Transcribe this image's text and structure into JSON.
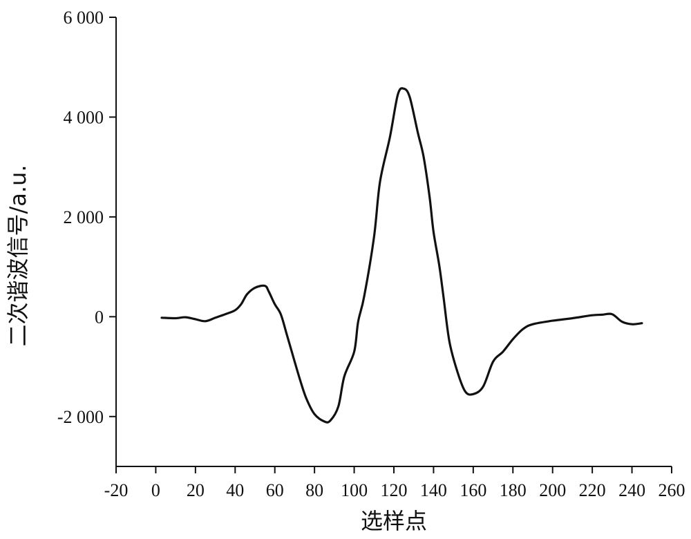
{
  "chart_data": {
    "type": "line",
    "title": "",
    "xlabel": "选样点",
    "ylabel": "二次谐波信号/a.u.",
    "xlim": [
      -20,
      260
    ],
    "ylim": [
      -3000,
      6000
    ],
    "grid": false,
    "x_ticks": [
      {
        "value": -20,
        "label": "-20"
      },
      {
        "value": 0,
        "label": "0"
      },
      {
        "value": 20,
        "label": "20"
      },
      {
        "value": 40,
        "label": "40"
      },
      {
        "value": 60,
        "label": "60"
      },
      {
        "value": 80,
        "label": "80"
      },
      {
        "value": 100,
        "label": "100"
      },
      {
        "value": 120,
        "label": "120"
      },
      {
        "value": 140,
        "label": "140"
      },
      {
        "value": 160,
        "label": "160"
      },
      {
        "value": 180,
        "label": "180"
      },
      {
        "value": 200,
        "label": "200"
      },
      {
        "value": 220,
        "label": "220"
      },
      {
        "value": 240,
        "label": "240"
      },
      {
        "value": 260,
        "label": "260"
      }
    ],
    "y_ticks": [
      {
        "value": -2000,
        "label": "-2 000"
      },
      {
        "value": 0,
        "label": "0"
      },
      {
        "value": 2000,
        "label": "2 000"
      },
      {
        "value": 4000,
        "label": "4 000"
      },
      {
        "value": 6000,
        "label": "6 000"
      }
    ],
    "series": [
      {
        "color": "#111111",
        "x": [
          3,
          10,
          15,
          20,
          25,
          30,
          35,
          40,
          43,
          46,
          50,
          55,
          57,
          60,
          63,
          66,
          70,
          73,
          76,
          80,
          85,
          88,
          92,
          95,
          100,
          102,
          105,
          110,
          113,
          118,
          122,
          125,
          128,
          132,
          135,
          138,
          140,
          143,
          145,
          148,
          152,
          156,
          160,
          165,
          170,
          175,
          180,
          185,
          190,
          200,
          210,
          220,
          225,
          230,
          235,
          240,
          245
        ],
        "y": [
          -20,
          -30,
          -10,
          -50,
          -90,
          -20,
          50,
          130,
          250,
          450,
          580,
          620,
          500,
          250,
          50,
          -350,
          -900,
          -1300,
          -1650,
          -1950,
          -2100,
          -2080,
          -1800,
          -1200,
          -700,
          -100,
          400,
          1600,
          2700,
          3600,
          4450,
          4570,
          4400,
          3700,
          3200,
          2400,
          1700,
          1000,
          400,
          -500,
          -1100,
          -1500,
          -1550,
          -1400,
          -900,
          -700,
          -450,
          -250,
          -150,
          -80,
          -30,
          30,
          40,
          50,
          -100,
          -150,
          -130
        ]
      }
    ]
  }
}
